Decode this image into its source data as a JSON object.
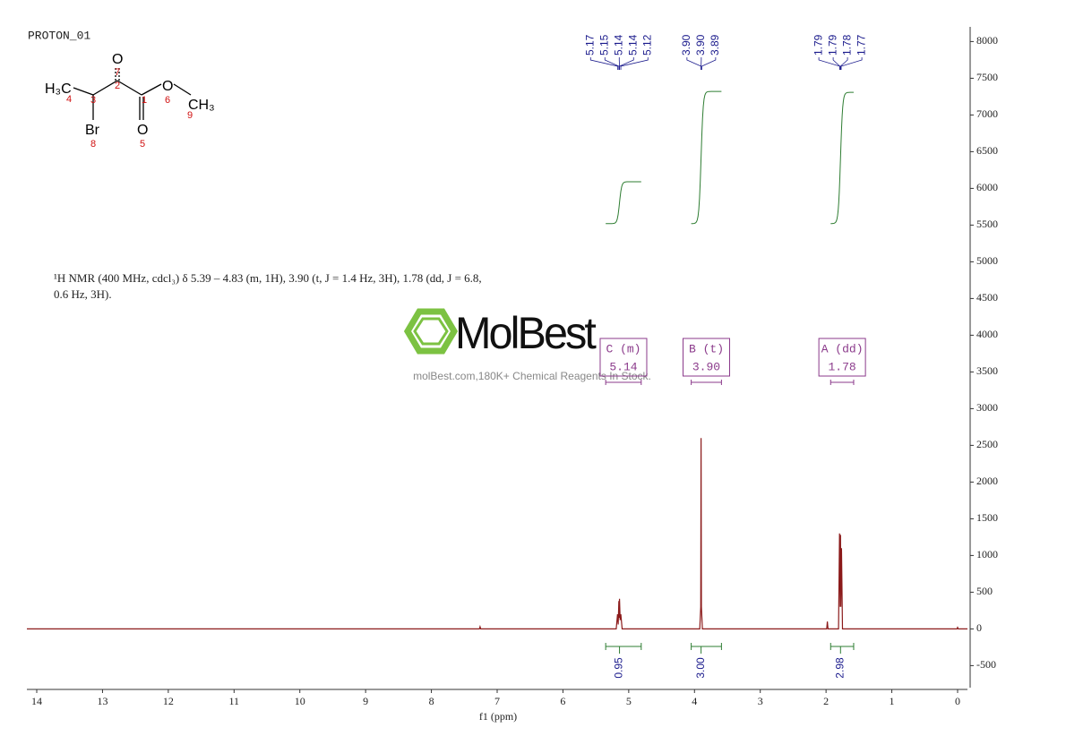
{
  "chart_data": {
    "type": "spectrum",
    "title": "PROTON_01",
    "structure": {
      "atoms": [
        "H₃C",
        "O",
        "O",
        "O",
        "CH₃",
        "Br"
      ],
      "numbers": [
        "1",
        "2",
        "3",
        "4",
        "5",
        "6",
        "7",
        "8",
        "9"
      ]
    },
    "description": [
      "¹H NMR (400 MHz, cdcl₃) δ 5.39 – 4.83 (m, 1H), 3.90 (t, J = 1.4 Hz, 3H), 1.78 (dd, J = 6.8,",
      "0.6 Hz, 3H)."
    ],
    "watermark": {
      "brand": "MolBest",
      "tagline": "molBest.com,180K+ Chemical Reagents In Stock."
    },
    "x_label": "f1  (ppm)",
    "xlim": [
      14.15,
      -0.15
    ],
    "xticks": [
      0,
      1,
      2,
      3,
      4,
      5,
      6,
      7,
      8,
      9,
      10,
      11,
      12,
      13,
      14
    ],
    "ylim": [
      -800,
      8200
    ],
    "yticks": [
      -500,
      0,
      500,
      1000,
      1500,
      2000,
      2500,
      3000,
      3500,
      4000,
      4500,
      5000,
      5500,
      6000,
      6500,
      7000,
      7500,
      8000
    ],
    "series": [
      {
        "name": "spectrum",
        "color": "#8b1a1a",
        "x": [
          14.15,
          7.27,
          7.26,
          7.25,
          5.19,
          5.17,
          5.16,
          5.15,
          5.145,
          5.14,
          5.13,
          5.12,
          5.1,
          3.92,
          3.905,
          3.9,
          3.895,
          3.88,
          1.99,
          1.98,
          1.97,
          1.81,
          1.795,
          1.785,
          1.78,
          1.775,
          1.765,
          1.75,
          0.01,
          0,
          -0.01,
          -0.15
        ],
        "values": [
          0,
          0,
          30,
          0,
          0,
          200,
          60,
          380,
          150,
          410,
          120,
          200,
          0,
          0,
          300,
          2600,
          300,
          0,
          0,
          100,
          0,
          0,
          1300,
          300,
          1280,
          300,
          1100,
          0,
          0,
          20,
          0,
          0
        ]
      }
    ],
    "peak_labels": [
      [
        5.17,
        5.15,
        5.14,
        5.14,
        5.12
      ],
      [
        {
          "value": 3.9,
          "label": "3.90"
        },
        {
          "value": 3.9,
          "label": "3.90"
        },
        3.89
      ],
      [
        1.79,
        1.79,
        1.78,
        1.77
      ]
    ],
    "multiplets": [
      {
        "name": "C (m)",
        "shift": 5.14,
        "range": [
          5.35,
          4.81
        ],
        "integral": 0.95
      },
      {
        "name": "B (t)",
        "shift": {
          "value": 3.9,
          "label": "3.90"
        },
        "range": [
          4.05,
          3.59
        ],
        "integral": {
          "value": 3,
          "label": "3.00"
        }
      },
      {
        "name": "A (dd)",
        "shift": 1.78,
        "range": [
          1.93,
          1.58
        ],
        "integral": 2.98
      }
    ]
  }
}
